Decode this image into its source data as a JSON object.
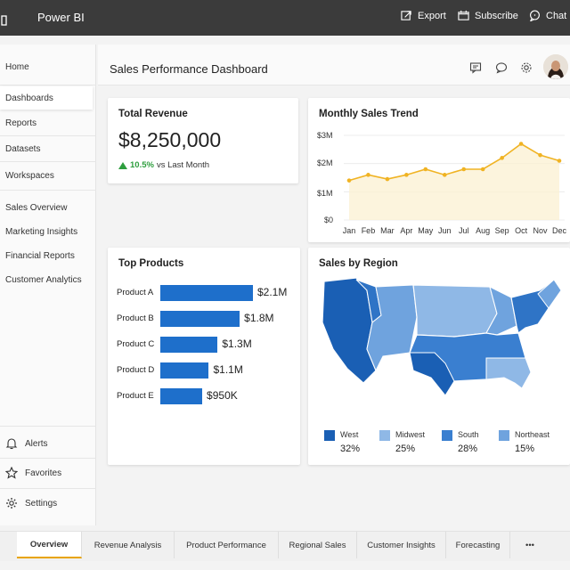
{
  "app": {
    "title": "Power BI"
  },
  "topbar": {
    "export_label": "Export",
    "subscribe_label": "Subscribe",
    "chat_label": "Chat"
  },
  "sidebar": {
    "items": [
      {
        "label": "Home"
      },
      {
        "label": "Dashboards",
        "active": true
      },
      {
        "label": "Reports"
      },
      {
        "label": "Datasets"
      },
      {
        "label": "Workspaces"
      },
      {
        "label": "Sales Overview"
      },
      {
        "label": "Marketing Insights"
      },
      {
        "label": "Financial Reports"
      },
      {
        "label": "Customer Analytics"
      }
    ],
    "bottom": [
      {
        "label": "Alerts",
        "icon": "bell-icon"
      },
      {
        "label": "Favorites",
        "icon": "star-icon"
      },
      {
        "label": "Settings",
        "icon": "gear-icon"
      }
    ]
  },
  "header": {
    "title": "Sales Performance Dashboard"
  },
  "total_revenue": {
    "title": "Total Revenue",
    "value": "$8,250,000",
    "change": "10.5%",
    "change_suffix": "vs Last Month",
    "accent": "#2e9e3e"
  },
  "monthly_trend": {
    "title": "Monthly Sales Trend",
    "y_ticks": [
      "$3M",
      "$2M",
      "$1M",
      "$0"
    ]
  },
  "top_products": {
    "title": "Top Products"
  },
  "sales_by_region": {
    "title": "Sales by Region"
  },
  "chart_data": [
    {
      "type": "line",
      "title": "Monthly Sales Trend",
      "categories": [
        "Jan",
        "Feb",
        "Mar",
        "Apr",
        "May",
        "Jun",
        "Jul",
        "Aug",
        "Sep",
        "Oct",
        "Nov",
        "Dec"
      ],
      "values": [
        1.4,
        1.6,
        1.45,
        1.6,
        1.8,
        1.6,
        1.8,
        1.8,
        2.2,
        2.7,
        2.3,
        2.1
      ],
      "ylim": [
        0,
        3
      ],
      "color": "#f0b323"
    },
    {
      "type": "bar",
      "title": "Top Products",
      "categories": [
        "Product A",
        "Product B",
        "Product C",
        "Product D",
        "Product E"
      ],
      "values": [
        2.1,
        1.8,
        1.3,
        1.1,
        0.95
      ],
      "labels": [
        "$2.1M",
        "$1.8M",
        "$1.3M",
        "$1.1M",
        "$950K"
      ],
      "color": "#1e6fcb"
    },
    {
      "type": "pie",
      "title": "Sales by Region",
      "categories": [
        "West",
        "Midwest",
        "South",
        "Northeast"
      ],
      "values": [
        32,
        25,
        28,
        15
      ],
      "labels": [
        "32%",
        "25%",
        "28%",
        "15%"
      ],
      "colors": [
        "#1a5fb4",
        "#8fb8e6",
        "#3a7fd0",
        "#6fa3de"
      ]
    }
  ],
  "tabs": [
    {
      "label": "Overview",
      "active": true
    },
    {
      "label": "Revenue Analysis"
    },
    {
      "label": "Product Performance"
    },
    {
      "label": "Regional Sales"
    },
    {
      "label": "Customer Insights"
    },
    {
      "label": "Forecasting"
    },
    {
      "label": "•••"
    }
  ]
}
